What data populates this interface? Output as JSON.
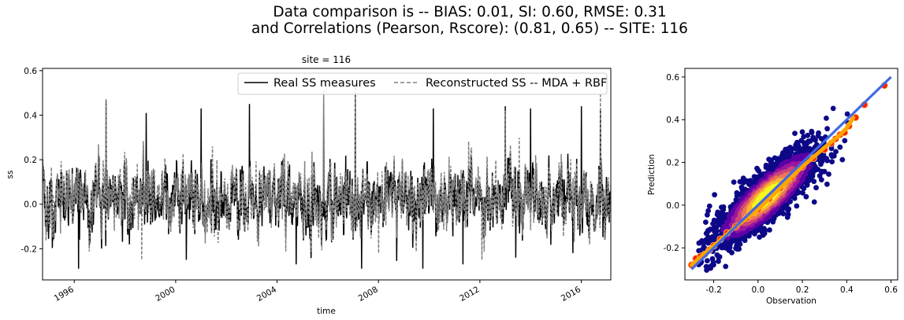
{
  "figure": {
    "suptitle_line1": "Data comparison is   --   BIAS: 0.01, SI: 0.60, RMSE: 0.31",
    "suptitle_line2": "and Correlations (Pearson, Rscore): (0.81, 0.65) -- SITE: 116"
  },
  "chart_data": [
    {
      "type": "line",
      "title": "site = 116",
      "xlabel": "time",
      "ylabel": "ss",
      "xlim": [
        "1994-10-01",
        "2017-03-01"
      ],
      "ylim": [
        -0.34,
        0.61
      ],
      "xticks": [
        "1996",
        "2000",
        "2004",
        "2008",
        "2012",
        "2016"
      ],
      "yticks": [
        -0.2,
        0.0,
        0.2,
        0.4,
        0.6
      ],
      "grid": false,
      "legend": {
        "placement": "top-right",
        "ncol": 2
      },
      "series": [
        {
          "name": "Real SS measures",
          "color": "#000000",
          "style": "solid",
          "summary": {
            "mean": 0.02,
            "typical_min": -0.15,
            "typical_max": 0.22,
            "min": -0.3,
            "max": 0.5
          },
          "peaks": [
            [
              "1997-04-01",
              0.47
            ],
            [
              "1998-11-01",
              0.41
            ],
            [
              "2001-01-01",
              0.43
            ],
            [
              "2002-12-01",
              0.45
            ],
            [
              "2005-11-01",
              0.46
            ],
            [
              "2007-02-01",
              0.5
            ],
            [
              "2010-03-01",
              0.43
            ],
            [
              "2013-01-01",
              0.44
            ],
            [
              "2014-01-01",
              0.43
            ],
            [
              "2016-01-01",
              0.44
            ],
            [
              "2016-10-01",
              0.43
            ]
          ],
          "troughs": [
            [
              "1996-03-01",
              -0.29
            ],
            [
              "2000-06-01",
              -0.25
            ],
            [
              "2004-10-01",
              -0.27
            ],
            [
              "2007-05-01",
              -0.29
            ],
            [
              "2009-10-01",
              -0.29
            ],
            [
              "2011-05-01",
              -0.27
            ],
            [
              "2013-06-01",
              -0.24
            ],
            [
              "2015-09-01",
              -0.22
            ]
          ]
        },
        {
          "name": "Reconstructed SS -- MDA + RBF",
          "color": "#808080",
          "style": "dashed",
          "summary": {
            "mean": 0.03,
            "typical_min": -0.1,
            "typical_max": 0.26,
            "min": -0.25,
            "max": 0.55
          },
          "peaks": [
            [
              "1997-04-01",
              0.47
            ],
            [
              "2005-11-01",
              0.51
            ],
            [
              "2007-02-01",
              0.55
            ],
            [
              "2013-01-01",
              0.42
            ],
            [
              "2016-10-01",
              0.51
            ]
          ],
          "troughs": [
            [
              "1998-09-01",
              -0.25
            ],
            [
              "2008-01-01",
              -0.22
            ],
            [
              "2012-02-01",
              -0.25
            ]
          ]
        }
      ]
    },
    {
      "type": "scatter",
      "title": "",
      "xlabel": "Observation",
      "ylabel": "Prediction",
      "xlim": [
        -0.33,
        0.63
      ],
      "ylim": [
        -0.35,
        0.64
      ],
      "xticks": [
        -0.2,
        0.0,
        0.2,
        0.4,
        0.6
      ],
      "yticks": [
        -0.2,
        0.0,
        0.2,
        0.4,
        0.6
      ],
      "grid": false,
      "density_colormap": [
        "#0d0887",
        "#5c01a6",
        "#9c179e",
        "#cc4778",
        "#ed7953",
        "#fdb42f",
        "#f0f921"
      ],
      "cloud": {
        "center": [
          0.04,
          0.04
        ],
        "slope": 0.85,
        "spread": 0.06,
        "x_range": [
          -0.28,
          0.47
        ]
      },
      "series": [
        {
          "name": "",
          "kind": "density-scatter",
          "color": "#0d0887"
        },
        {
          "name": "",
          "kind": "quantiles",
          "color": "#ff2200",
          "x": [
            -0.3,
            -0.28,
            -0.26,
            -0.24,
            -0.22,
            -0.2,
            -0.17,
            -0.14,
            -0.1,
            -0.05,
            0.0,
            0.05,
            0.1,
            0.15,
            0.2,
            0.25,
            0.3,
            0.33,
            0.35,
            0.37,
            0.39,
            0.41,
            0.44,
            0.48,
            0.57
          ],
          "y": [
            -0.28,
            -0.25,
            -0.24,
            -0.23,
            -0.21,
            -0.19,
            -0.16,
            -0.13,
            -0.1,
            -0.06,
            -0.02,
            0.03,
            0.08,
            0.13,
            0.18,
            0.22,
            0.26,
            0.29,
            0.31,
            0.33,
            0.34,
            0.37,
            0.41,
            0.47,
            0.56
          ]
        },
        {
          "name": "",
          "kind": "qq-line",
          "color": "#ffa500",
          "x": [
            -0.3,
            -0.2,
            -0.1,
            0.0,
            0.1,
            0.2,
            0.3,
            0.36,
            0.4,
            0.43
          ],
          "y": [
            -0.28,
            -0.19,
            -0.1,
            -0.02,
            0.08,
            0.18,
            0.27,
            0.32,
            0.36,
            0.41
          ]
        },
        {
          "name": "",
          "kind": "identity-line",
          "color": "#4169e1",
          "x": [
            -0.3,
            0.6
          ],
          "y": [
            -0.3,
            0.6
          ]
        }
      ]
    }
  ]
}
